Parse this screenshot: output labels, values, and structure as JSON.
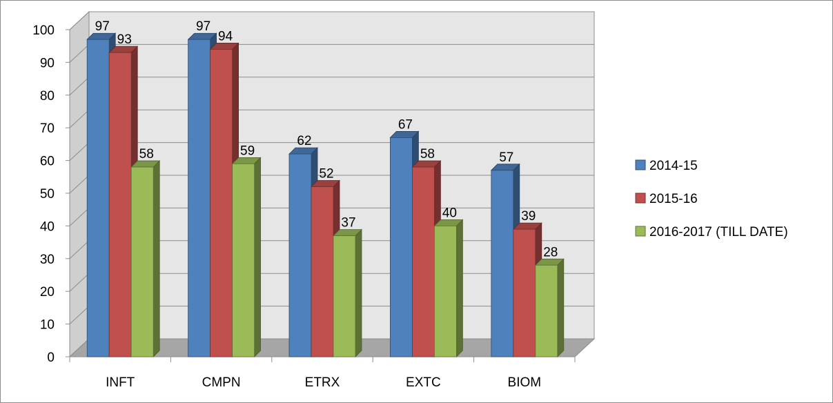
{
  "chart_data": {
    "type": "bar",
    "title": "",
    "xlabel": "",
    "ylabel": "",
    "categories": [
      "INFT",
      "CMPN",
      "ETRX",
      "EXTC",
      "BIOM"
    ],
    "series": [
      {
        "name": "2014-15",
        "values": [
          97,
          97,
          62,
          67,
          57
        ],
        "color": "#4f81bd"
      },
      {
        "name": "2015-16",
        "values": [
          93,
          94,
          52,
          58,
          39
        ],
        "color": "#c0504d"
      },
      {
        "name": "2016-2017 (TILL DATE)",
        "values": [
          58,
          59,
          37,
          40,
          28
        ],
        "color": "#9bbb59"
      }
    ],
    "ylim": [
      0,
      100
    ],
    "yticks": [
      0,
      10,
      20,
      30,
      40,
      50,
      60,
      70,
      80,
      90,
      100
    ],
    "grid": true,
    "legend_position": "right",
    "style": "3d-clustered-column"
  }
}
